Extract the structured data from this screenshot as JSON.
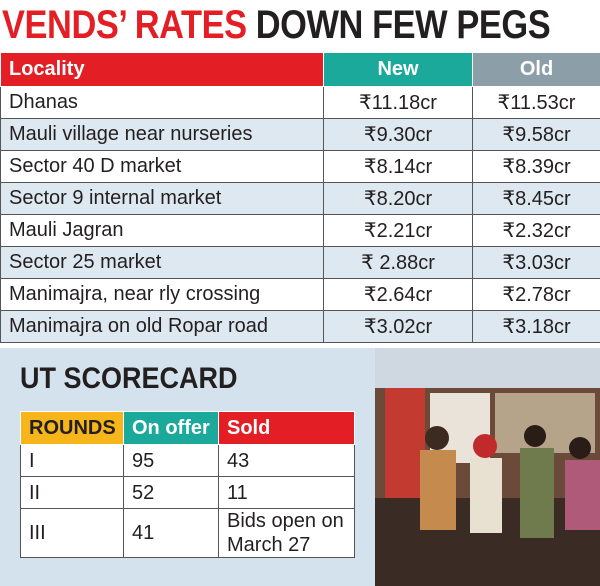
{
  "header": {
    "title": [
      "VENDS’ RATES",
      "DOWN FEW PEGS"
    ]
  },
  "table": {
    "header": [
      "Locality",
      "New",
      "Old"
    ],
    "rows": [
      [
        "Dhanas",
        "₹11.18cr",
        "₹11.53cr"
      ],
      [
        "Mauli village near nurseries",
        "₹9.30cr",
        "₹9.58cr"
      ],
      [
        "Sector 40 D market",
        "₹8.14cr",
        "₹8.39cr"
      ],
      [
        "Sector 9 internal market",
        "₹8.20cr",
        "₹8.45cr"
      ],
      [
        "Mauli Jagran",
        "₹2.21cr",
        "₹2.32cr"
      ],
      [
        "Sector 25 market",
        "₹ 2.88cr",
        "₹3.03cr"
      ],
      [
        "Manimajra, near rly crossing",
        "₹2.64cr",
        "₹2.78cr"
      ],
      [
        "Manimajra on old Ropar road",
        "₹3.02cr",
        "₹3.18cr"
      ]
    ]
  },
  "scorecard": {
    "title": "UT SCORECARD",
    "header": [
      "ROUNDS",
      "On offer",
      "Sold"
    ],
    "rows": [
      [
        "I",
        "95",
        "43"
      ],
      [
        "II",
        "52",
        "11"
      ],
      [
        "III",
        "41",
        "Bids open on March 27"
      ]
    ]
  }
}
